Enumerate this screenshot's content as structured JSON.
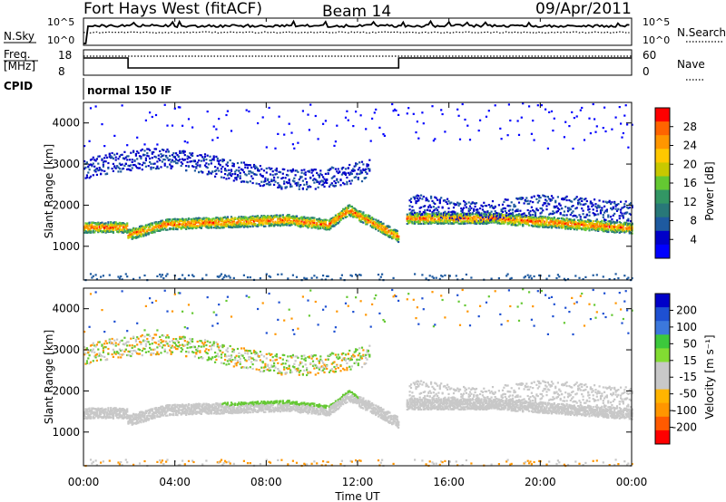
{
  "header": {
    "radar": "Fort Hays West (fitACF)",
    "beam": "Beam 14",
    "date": "09/Apr/2011"
  },
  "top_panels": {
    "nsky_label": "N.Sky",
    "nsky_ticks": [
      "10^5",
      "10^0"
    ],
    "nsearch_label": "N.Search",
    "nsearch_ticks": [
      "10^5",
      "10^0"
    ],
    "freq_label": "Freq.",
    "freq_unit": "[MHz]",
    "freq_ticks": [
      "18",
      "8"
    ],
    "nave_label": "Nave",
    "nave_ticks": [
      "60",
      "0"
    ],
    "cpid_label": "CPID",
    "cpid_value": "normal 150 IF"
  },
  "chart_data": [
    {
      "type": "heatmap",
      "panel": "power",
      "ylabel": "Slant Range [km]",
      "xlabel": "",
      "xlim": [
        0,
        24
      ],
      "ylim": [
        180,
        4500
      ],
      "yticks": [
        1000,
        2000,
        3000,
        4000
      ],
      "colorbar": {
        "label": "Power [dB]",
        "ticks": [
          "28",
          "24",
          "20",
          "16",
          "12",
          "8",
          "4"
        ],
        "colors": [
          "#ff0000",
          "#ff6400",
          "#ff9600",
          "#ffc800",
          "#c8c800",
          "#64c832",
          "#329664",
          "#287878",
          "#1e5aa0",
          "#0000c8",
          "#0000ff"
        ]
      },
      "features": [
        {
          "name": "main ionospheric band",
          "range_start_km": 1500,
          "range_end_km": 1500,
          "time_start_h": 0,
          "time_end_h": 13.7
        },
        {
          "name": "upper scatter",
          "range_km": 3000,
          "time_start_h": 0,
          "time_end_h": 12
        }
      ]
    },
    {
      "type": "heatmap",
      "panel": "velocity",
      "ylabel": "Slant Range [km]",
      "xlabel": "Time UT",
      "xlim": [
        0,
        24
      ],
      "ylim": [
        180,
        4500
      ],
      "yticks": [
        1000,
        2000,
        3000,
        4000
      ],
      "xticks": [
        "00:00",
        "04:00",
        "08:00",
        "12:00",
        "16:00",
        "20:00",
        "00:00"
      ],
      "colorbar": {
        "label": "Velocity [m s⁻¹]",
        "ticks": [
          "200",
          "100",
          "50",
          "15",
          "-15",
          "-50",
          "-100",
          "-200"
        ],
        "colors": [
          "#0000c8",
          "#1e50d2",
          "#3c78dc",
          "#3cc83c",
          "#82dc32",
          "#c8c8c8",
          "#c8c8c8",
          "#ffb400",
          "#ff9600",
          "#ff5a00",
          "#ff0000"
        ]
      }
    }
  ],
  "xaxis": {
    "title": "Time UT",
    "ticks": [
      "00:00",
      "04:00",
      "08:00",
      "12:00",
      "16:00",
      "20:00",
      "00:00"
    ]
  }
}
